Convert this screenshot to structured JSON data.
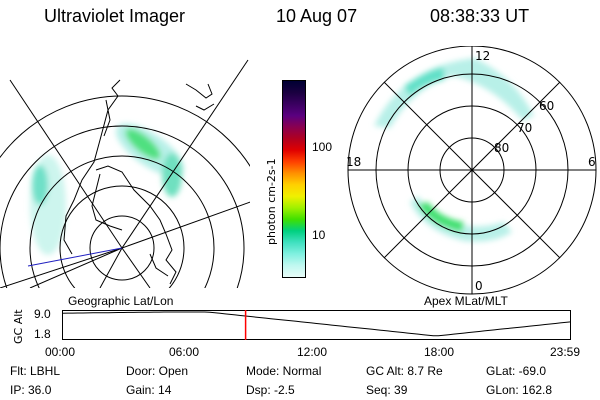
{
  "header": {
    "instrument": "Ultraviolet Imager",
    "date": "10 Aug 07",
    "time": "08:38:33 UT"
  },
  "geo_panel": {
    "label": "Geographic Lat/Lon"
  },
  "apex_panel": {
    "label": "Apex  MLat/MLT",
    "mlt_labels": {
      "top": "12",
      "left": "18",
      "right": "6",
      "bottom": "0"
    },
    "mlat_labels": [
      "60",
      "70",
      "80"
    ]
  },
  "colorbar": {
    "unit_label": "photon cm-2s-1",
    "ticks": [
      "100",
      "10"
    ],
    "colors": [
      "#000033",
      "#1a0040",
      "#3a0060",
      "#5a0080",
      "#8a0050",
      "#b00020",
      "#e00000",
      "#ff4000",
      "#ff9000",
      "#ffd000",
      "#f0f000",
      "#a0f000",
      "#40e000",
      "#00d080",
      "#40e0c0",
      "#80f0e0",
      "#c0f8f0",
      "#e8fcf8"
    ]
  },
  "timeline": {
    "y_label": "GC Alt",
    "y_ticks": [
      "9.0",
      "1.8"
    ],
    "x_ticks": [
      "00:00",
      "06:00",
      "12:00",
      "18:00",
      "23:59"
    ],
    "marker_time": "08:38:33",
    "marker_color": "#ff0000"
  },
  "info": {
    "filter": "Flt: LBHL",
    "ip": "IP: 36.0",
    "door": "Door: Open",
    "gain": "Gain: 14",
    "mode": "Mode: Normal",
    "dsp": "Dsp:    -2.5",
    "gc_alt": "GC Alt: 8.7 Re",
    "seq": "Seq: 39",
    "glat": "GLat: -69.0",
    "glon": "GLon: 162.8"
  }
}
